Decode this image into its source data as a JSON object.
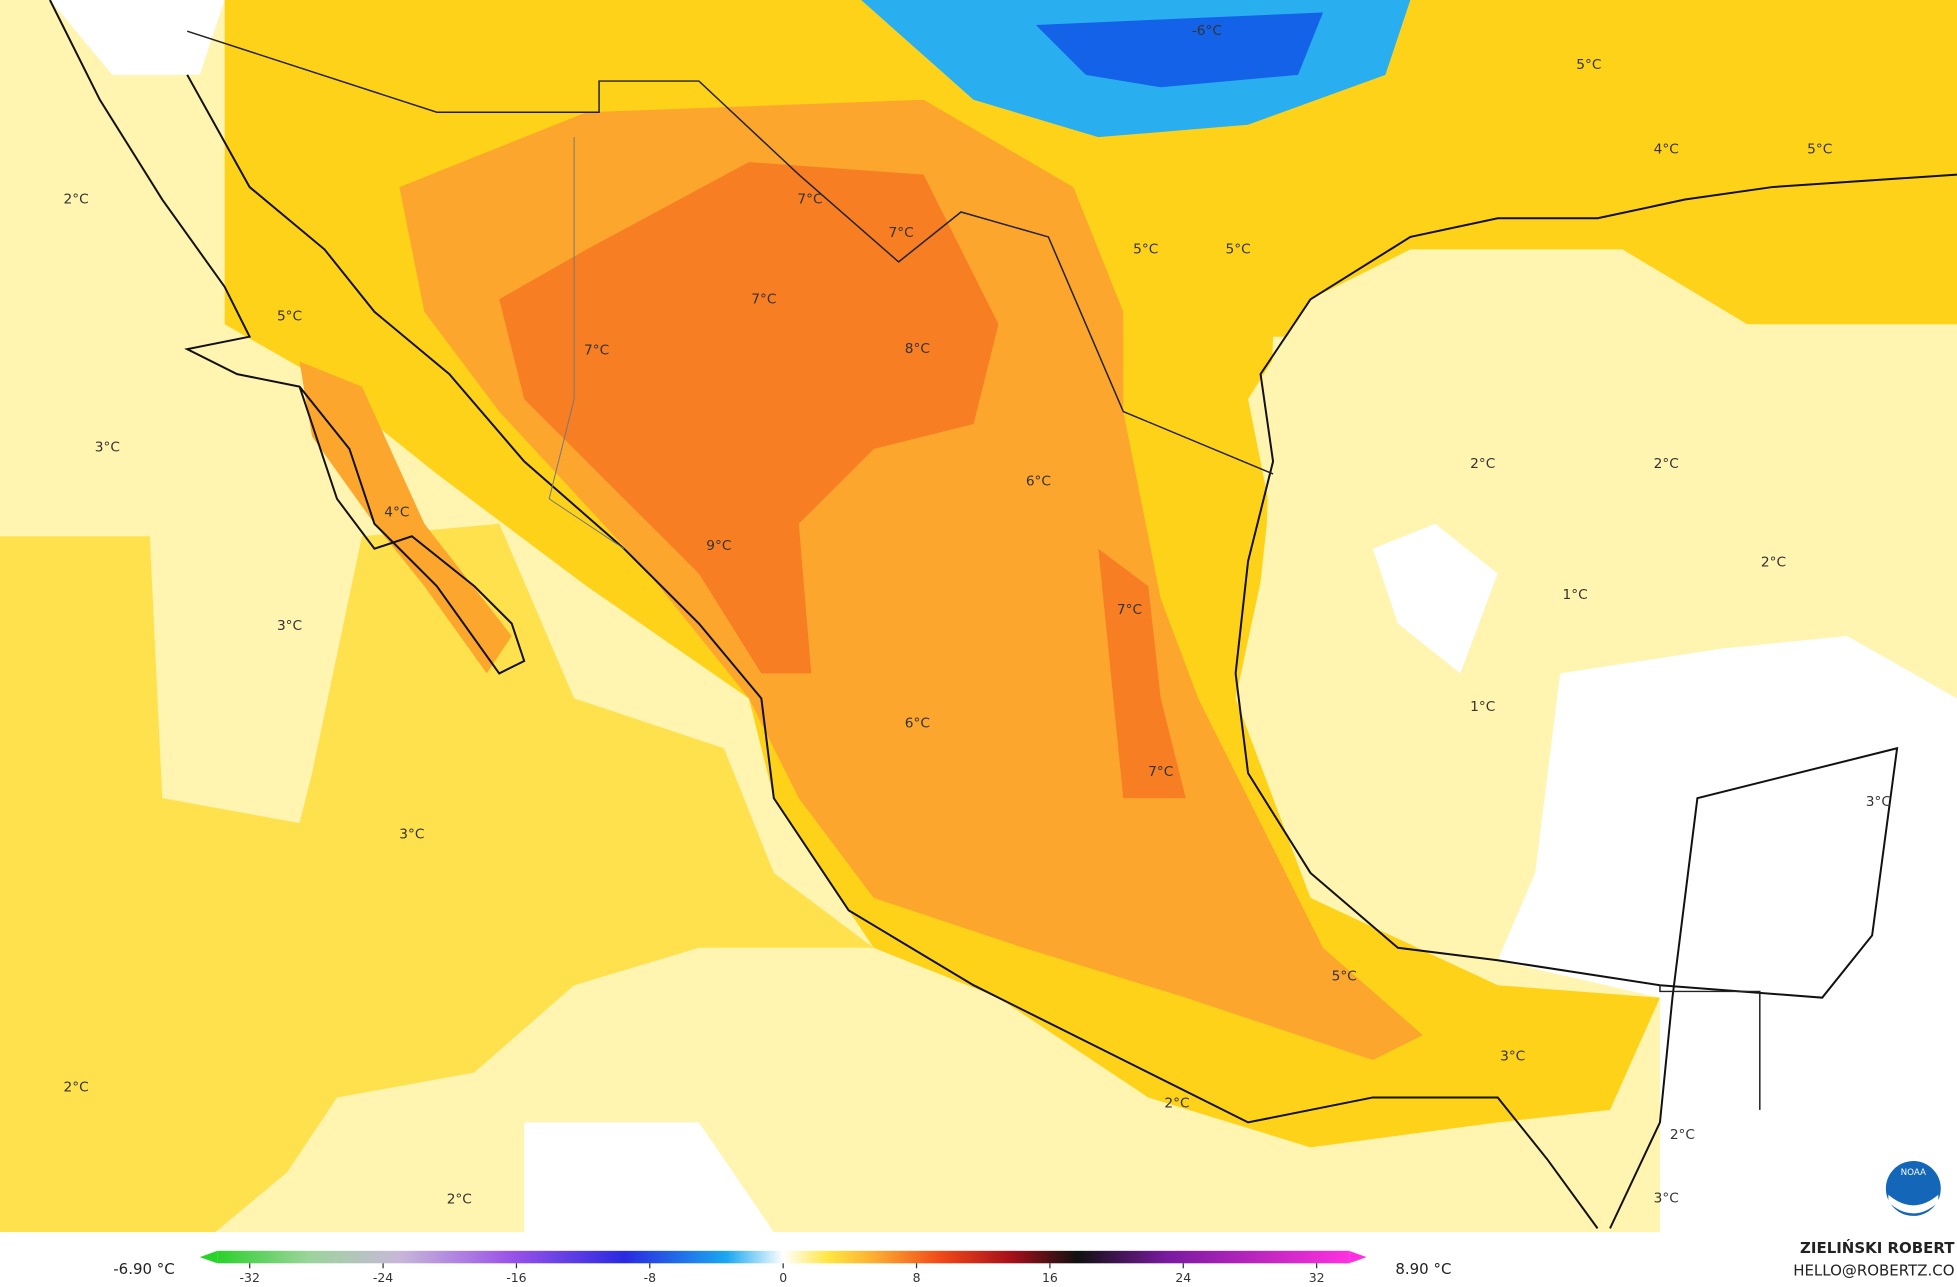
{
  "map": {
    "labels": [
      "2°C",
      "5°C",
      "7°C",
      "7°C",
      "7°C",
      "7°C",
      "8°C",
      "5°C",
      "5°C",
      "-6°C",
      "5°C",
      "4°C",
      "5°C",
      "3°C",
      "4°C",
      "6°C",
      "9°C",
      "2°C",
      "2°C",
      "2°C",
      "1°C",
      "1°C",
      "3°C",
      "7°C",
      "6°C",
      "7°C",
      "3°C",
      "3°C",
      "5°C",
      "3°C",
      "2°C",
      "2°C",
      "2°C",
      "2°C",
      "3°C"
    ],
    "logo": "NOAA"
  },
  "colorbar": {
    "min_label": "-6.90 °C",
    "max_label": "8.90 °C",
    "lim": [
      -35,
      35
    ],
    "ticks": [
      -32,
      -24,
      -16,
      -8,
      0,
      8,
      16,
      24,
      32
    ]
  },
  "credit": {
    "name": "ZIELIŃSKI ROBERT",
    "contact": "HELLO@ROBERTZ.CO"
  }
}
